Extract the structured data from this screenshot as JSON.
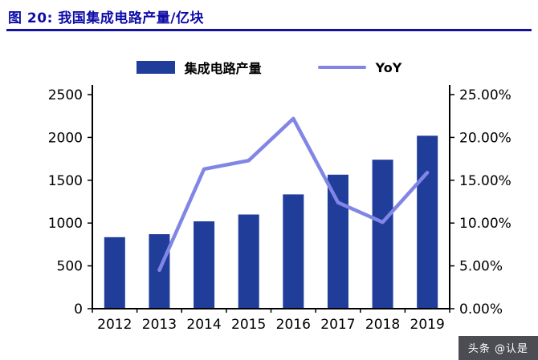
{
  "header": {
    "title": "图 20: 我国集成电路产量/亿块"
  },
  "legend": {
    "bar_label": "集成电路产量",
    "line_label": "YoY"
  },
  "watermark": {
    "text": "头条 @认是"
  },
  "colors": {
    "bar": "#1f3d99",
    "line": "#8186e6",
    "title": "#0e0ca8",
    "underline": "#14129e",
    "axis": "#000000",
    "tick_text": "#000000"
  },
  "chart_data": {
    "type": "bar",
    "subtype": "combo-bar-line",
    "title": "图 20: 我国集成电路产量/亿块",
    "categories": [
      "2012",
      "2013",
      "2014",
      "2015",
      "2016",
      "2017",
      "2018",
      "2019"
    ],
    "series": [
      {
        "name": "集成电路产量",
        "type": "bar",
        "axis": "left",
        "values": [
          835,
          870,
          1020,
          1100,
          1335,
          1565,
          1740,
          2020
        ]
      },
      {
        "name": "YoY",
        "type": "line",
        "axis": "right",
        "values": [
          null,
          4.5,
          16.3,
          17.3,
          22.2,
          12.4,
          10.1,
          15.9
        ]
      }
    ],
    "xlabel": "",
    "ylabel_left": "产量/亿块",
    "ylabel_right": "YoY",
    "y_left": {
      "min": 0,
      "max": 2500,
      "ticks": [
        {
          "v": 0,
          "label": "0"
        },
        {
          "v": 500,
          "label": "500"
        },
        {
          "v": 1000,
          "label": "1000"
        },
        {
          "v": 1500,
          "label": "1500"
        },
        {
          "v": 2000,
          "label": "2000"
        },
        {
          "v": 2500,
          "label": "2500"
        }
      ]
    },
    "y_right": {
      "min": 0,
      "max": 25,
      "ticks": [
        {
          "v": 0,
          "label": "0.00%"
        },
        {
          "v": 5,
          "label": "5.00%"
        },
        {
          "v": 10,
          "label": "10.00%"
        },
        {
          "v": 15,
          "label": "15.00%"
        },
        {
          "v": 20,
          "label": "20.00%"
        },
        {
          "v": 25,
          "label": "25.00%"
        }
      ]
    },
    "legend_position": "top",
    "grid": false
  }
}
